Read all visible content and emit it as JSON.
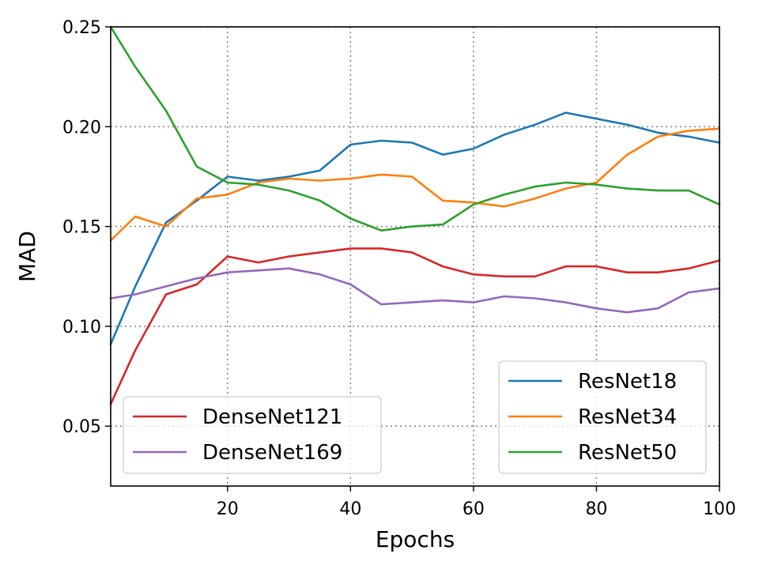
{
  "chart_data": {
    "type": "line",
    "xlabel": "Epochs",
    "ylabel": "MAD",
    "xlim": [
      1,
      100
    ],
    "ylim": [
      0.02,
      0.25
    ],
    "xticks": [
      20,
      40,
      60,
      80,
      100
    ],
    "xtick_labels": [
      "20",
      "40",
      "60",
      "80",
      "100"
    ],
    "yticks": [
      0.05,
      0.1,
      0.15,
      0.2,
      0.25
    ],
    "ytick_labels": [
      "0.05",
      "0.10",
      "0.15",
      "0.20",
      "0.25"
    ],
    "grid": true,
    "x": [
      1,
      5,
      10,
      15,
      20,
      25,
      30,
      35,
      40,
      45,
      50,
      55,
      60,
      65,
      70,
      75,
      80,
      85,
      90,
      95,
      100
    ],
    "series": [
      {
        "name": "ResNet18",
        "color": "#1f77b4",
        "values": [
          0.091,
          0.12,
          0.152,
          0.163,
          0.175,
          0.173,
          0.175,
          0.178,
          0.191,
          0.193,
          0.192,
          0.186,
          0.189,
          0.196,
          0.201,
          0.207,
          0.204,
          0.201,
          0.197,
          0.195,
          0.192
        ]
      },
      {
        "name": "ResNet34",
        "color": "#ff7f0e",
        "values": [
          0.143,
          0.155,
          0.15,
          0.164,
          0.166,
          0.172,
          0.174,
          0.173,
          0.174,
          0.176,
          0.175,
          0.163,
          0.162,
          0.16,
          0.164,
          0.169,
          0.172,
          0.186,
          0.195,
          0.198,
          0.199
        ]
      },
      {
        "name": "ResNet50",
        "color": "#2ca02c",
        "values": [
          0.25,
          0.23,
          0.208,
          0.18,
          0.172,
          0.171,
          0.168,
          0.163,
          0.154,
          0.148,
          0.15,
          0.151,
          0.161,
          0.166,
          0.17,
          0.172,
          0.171,
          0.169,
          0.168,
          0.168,
          0.161
        ]
      },
      {
        "name": "DenseNet121",
        "color": "#d62728",
        "values": [
          0.061,
          0.088,
          0.116,
          0.121,
          0.135,
          0.132,
          0.135,
          0.137,
          0.139,
          0.139,
          0.137,
          0.13,
          0.126,
          0.125,
          0.125,
          0.13,
          0.13,
          0.127,
          0.127,
          0.129,
          0.133
        ]
      },
      {
        "name": "DenseNet169",
        "color": "#9467bd",
        "values": [
          0.114,
          0.116,
          0.12,
          0.124,
          0.127,
          0.128,
          0.129,
          0.126,
          0.121,
          0.111,
          0.112,
          0.113,
          0.112,
          0.115,
          0.114,
          0.112,
          0.109,
          0.107,
          0.109,
          0.117,
          0.119
        ]
      }
    ],
    "legends": [
      {
        "placement": "lower-right",
        "series": [
          "ResNet18",
          "ResNet34",
          "ResNet50"
        ]
      },
      {
        "placement": "lower-left",
        "series": [
          "DenseNet121",
          "DenseNet169"
        ]
      }
    ]
  }
}
